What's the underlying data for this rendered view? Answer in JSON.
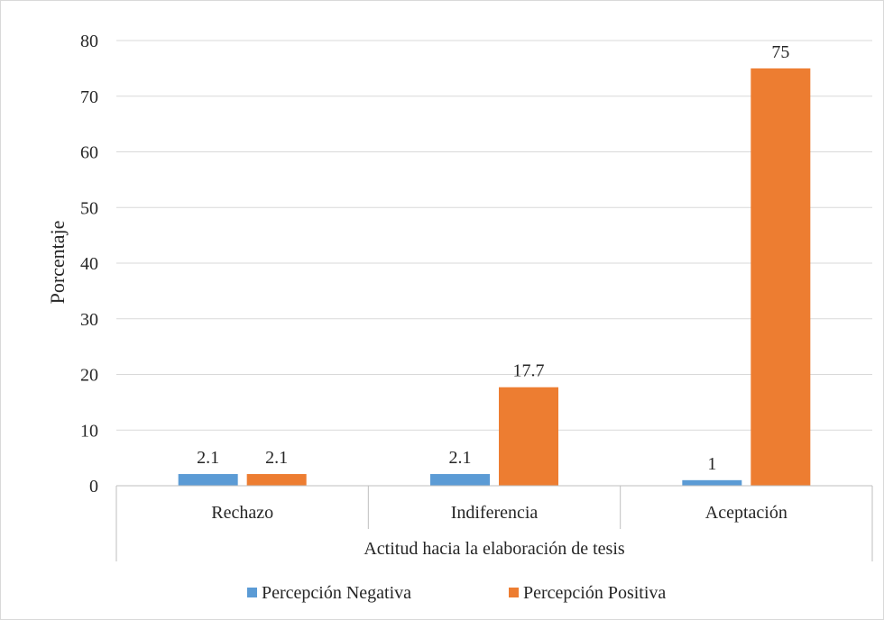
{
  "chart_data": {
    "type": "bar",
    "title": "",
    "ylabel": "Porcentaje",
    "xlabel": "Actitud hacia la elaboración de tesis",
    "ylim": [
      0,
      80
    ],
    "yticks": [
      0,
      10,
      20,
      30,
      40,
      50,
      60,
      70,
      80
    ],
    "categories": [
      "Rechazo",
      "Indiferencia",
      "Aceptación"
    ],
    "series": [
      {
        "name": "Percepción Negativa",
        "color": "#5b9bd5",
        "values": [
          2.1,
          2.1,
          1
        ]
      },
      {
        "name": "Percepción Positiva",
        "color": "#ed7d31",
        "values": [
          2.1,
          17.7,
          75
        ]
      }
    ],
    "data_labels": [
      [
        "2.1",
        "2.1",
        "1"
      ],
      [
        "2.1",
        "17.7",
        "75"
      ]
    ],
    "grid": true,
    "legend_position": "bottom"
  }
}
